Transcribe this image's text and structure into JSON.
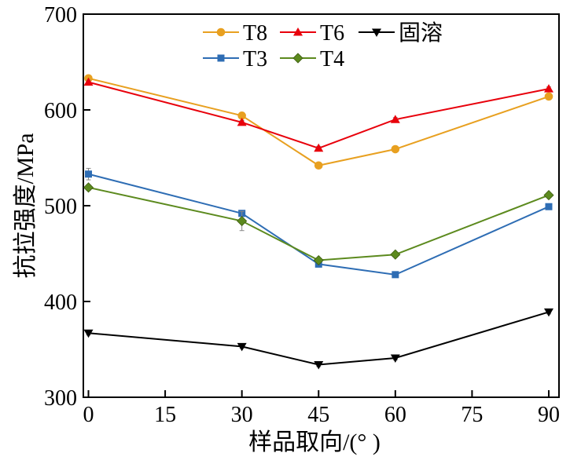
{
  "chart_data": {
    "type": "line",
    "title": "",
    "xlabel": "样品取向/(°  )",
    "ylabel": "抗拉强度/MPa",
    "xlim": [
      -1,
      92
    ],
    "ylim": [
      300,
      700
    ],
    "xticks": [
      0,
      15,
      30,
      45,
      60,
      75,
      90
    ],
    "yticks": [
      300,
      400,
      500,
      600,
      700
    ],
    "x": [
      0,
      30,
      45,
      60,
      90
    ],
    "grid": false,
    "legend_position": "top",
    "series": [
      {
        "name": "T8",
        "color": "#E8A020",
        "marker": "circle",
        "values": [
          633,
          594,
          542,
          559,
          614
        ],
        "errors": [
          3,
          3,
          2,
          2,
          3
        ]
      },
      {
        "name": "T6",
        "color": "#E8000B",
        "marker": "triangle-up",
        "values": [
          629,
          587,
          560,
          590,
          622
        ],
        "errors": [
          2,
          2,
          2,
          2,
          2
        ]
      },
      {
        "name": "固溶",
        "color": "#000000",
        "marker": "triangle-down",
        "values": [
          367,
          353,
          334,
          341,
          389
        ],
        "errors": [
          2,
          2,
          2,
          2,
          2
        ]
      },
      {
        "name": "T3",
        "color": "#2E6DB4",
        "marker": "square",
        "values": [
          533,
          492,
          439,
          428,
          499
        ],
        "errors": [
          6,
          3,
          2,
          2,
          2
        ]
      },
      {
        "name": "T4",
        "color": "#5C8A1E",
        "marker": "diamond",
        "values": [
          519,
          484,
          443,
          449,
          511
        ],
        "errors": [
          3,
          10,
          2,
          2,
          2
        ]
      }
    ]
  }
}
